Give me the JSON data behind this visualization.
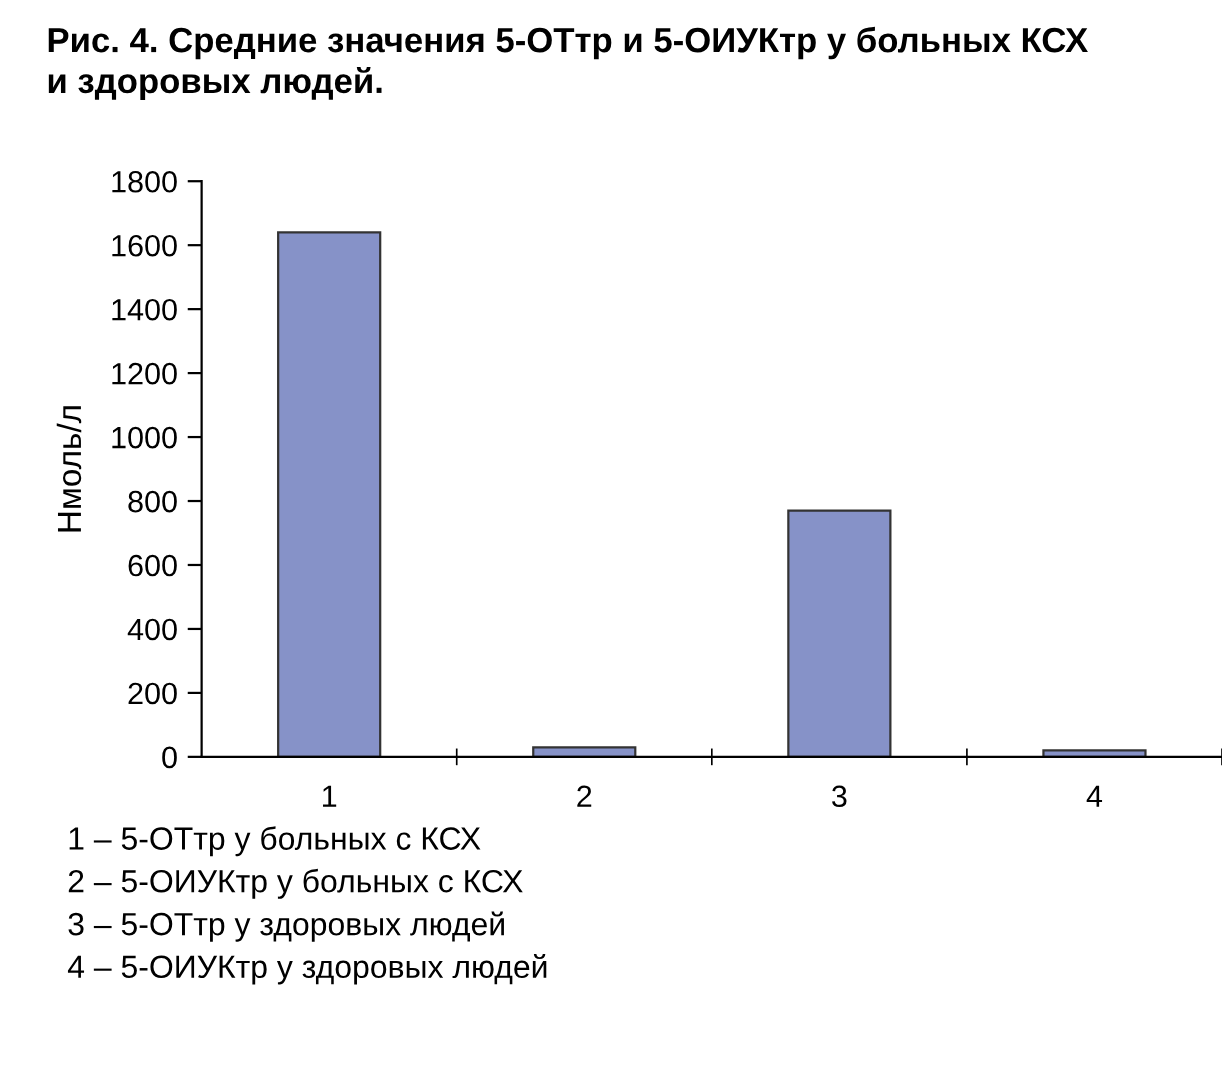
{
  "chart_data": {
    "type": "bar",
    "title": "Рис. 4. Средние значения 5-ОТтр и 5-ОИУКтр у больных КСХ\nи здоровых людей.",
    "ylabel": "Нмоль/л",
    "categories": [
      "1",
      "2",
      "3",
      "4"
    ],
    "values": [
      1640,
      30,
      770,
      20
    ],
    "color": "#8692c8",
    "ylim": [
      0,
      1800
    ],
    "yticks": [
      0,
      200,
      400,
      600,
      800,
      1000,
      1200,
      1400,
      1600,
      1800
    ],
    "grid": false,
    "legend": false,
    "annotations": [
      "1 – 5-ОТтр у больных с КСХ",
      "2 – 5-ОИУКтр у больных с КСХ",
      "3 – 5-ОТтр у здоровых людей",
      "4 – 5-ОИУКтр у здоровых людей"
    ]
  }
}
